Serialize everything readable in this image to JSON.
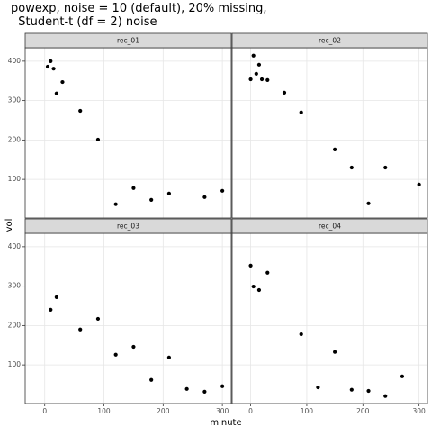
{
  "chart_data": {
    "type": "scatter",
    "title": [
      "powexp, noise = 10 (default), 20% missing,",
      "  Student-t (df = 2) noise"
    ],
    "x_label": "minute",
    "y_label": "vol",
    "xlim": [
      -33,
      315
    ],
    "ylim": [
      2,
      434
    ],
    "xticks": [
      0,
      100,
      200,
      300
    ],
    "yticks": [
      100,
      200,
      300,
      400
    ],
    "grid": true,
    "color": "#000000",
    "facets": [
      {
        "name": "rec_01",
        "x": [
          5,
          10,
          15,
          20,
          30,
          60,
          90,
          120,
          150,
          180,
          210,
          270,
          300
        ],
        "values": [
          386,
          400,
          381,
          318,
          347,
          274,
          201,
          37,
          78,
          48,
          64,
          55,
          71
        ]
      },
      {
        "name": "rec_02",
        "x": [
          0,
          5,
          10,
          15,
          20,
          30,
          60,
          90,
          150,
          180,
          210,
          240,
          300
        ],
        "values": [
          354,
          414,
          368,
          391,
          354,
          352,
          320,
          270,
          176,
          130,
          39,
          130,
          87
        ]
      },
      {
        "name": "rec_03",
        "x": [
          10,
          20,
          60,
          90,
          120,
          150,
          180,
          210,
          240,
          270,
          300
        ],
        "values": [
          240,
          272,
          190,
          217,
          126,
          146,
          62,
          119,
          39,
          32,
          46
        ]
      },
      {
        "name": "rec_04",
        "x": [
          0,
          5,
          15,
          30,
          90,
          120,
          150,
          180,
          210,
          240,
          270
        ],
        "values": [
          352,
          299,
          290,
          334,
          178,
          43,
          133,
          37,
          34,
          21,
          71
        ]
      }
    ]
  }
}
